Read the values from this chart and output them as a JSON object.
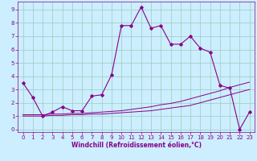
{
  "xlabel": "Windchill (Refroidissement éolien,°C)",
  "background_color": "#cceeff",
  "grid_color": "#99ccbb",
  "line_color": "#880088",
  "x_values": [
    0,
    1,
    2,
    3,
    4,
    5,
    6,
    7,
    8,
    9,
    10,
    11,
    12,
    13,
    14,
    15,
    16,
    17,
    18,
    19,
    20,
    21,
    22,
    23
  ],
  "y_main": [
    3.5,
    2.4,
    1.0,
    1.3,
    1.7,
    1.4,
    1.4,
    2.5,
    2.6,
    4.1,
    7.8,
    7.8,
    9.2,
    7.6,
    7.8,
    6.4,
    6.4,
    7.0,
    6.1,
    5.8,
    3.3,
    3.1,
    0.0,
    1.3
  ],
  "y_line1": [
    1.0,
    1.0,
    1.0,
    1.05,
    1.05,
    1.1,
    1.1,
    1.15,
    1.15,
    1.2,
    1.25,
    1.3,
    1.35,
    1.4,
    1.5,
    1.6,
    1.7,
    1.8,
    2.0,
    2.2,
    2.4,
    2.6,
    2.8,
    3.0
  ],
  "y_line2": [
    1.1,
    1.1,
    1.1,
    1.15,
    1.15,
    1.2,
    1.2,
    1.25,
    1.3,
    1.35,
    1.4,
    1.5,
    1.6,
    1.7,
    1.85,
    1.95,
    2.1,
    2.3,
    2.5,
    2.7,
    2.9,
    3.15,
    3.35,
    3.55
  ],
  "ylim": [
    -0.2,
    9.6
  ],
  "xlim": [
    -0.5,
    23.5
  ],
  "yticks": [
    0,
    1,
    2,
    3,
    4,
    5,
    6,
    7,
    8,
    9
  ],
  "xticks": [
    0,
    1,
    2,
    3,
    4,
    5,
    6,
    7,
    8,
    9,
    10,
    11,
    12,
    13,
    14,
    15,
    16,
    17,
    18,
    19,
    20,
    21,
    22,
    23
  ],
  "tick_fontsize": 5.0,
  "xlabel_fontsize": 5.5
}
